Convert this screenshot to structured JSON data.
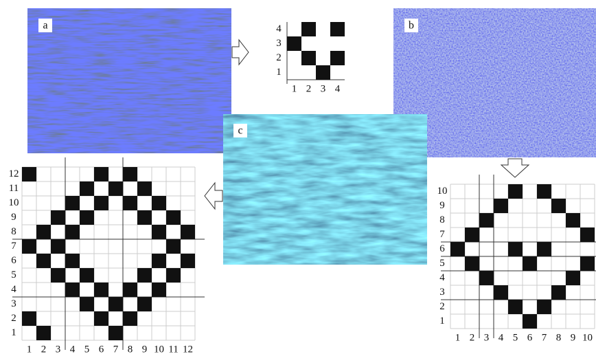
{
  "panels": {
    "a": "a",
    "b": "b",
    "c": "c"
  },
  "grids": {
    "small": {
      "rows": 4,
      "row_labels": [
        "1",
        "2",
        "3",
        "4"
      ],
      "col_labels": [
        "1",
        "2",
        "3",
        "4"
      ],
      "filled": [
        [
          2,
          4
        ],
        [
          4,
          4
        ],
        [
          1,
          3
        ],
        [
          2,
          2
        ],
        [
          4,
          2
        ],
        [
          3,
          1
        ]
      ]
    },
    "left": {
      "rows": 12,
      "row_labels": [
        "1",
        "2",
        "3",
        "4",
        "5",
        "6",
        "7",
        "8",
        "9",
        "10",
        "11",
        "12"
      ],
      "col_labels": [
        "1",
        "2",
        "3",
        "4",
        "5",
        "6",
        "7",
        "8",
        "9",
        "10",
        "11",
        "12"
      ],
      "filled": [
        [
          1,
          12
        ],
        [
          6,
          12
        ],
        [
          8,
          12
        ],
        [
          5,
          11
        ],
        [
          7,
          11
        ],
        [
          9,
          11
        ],
        [
          4,
          10
        ],
        [
          6,
          10
        ],
        [
          8,
          10
        ],
        [
          10,
          10
        ],
        [
          3,
          9
        ],
        [
          5,
          9
        ],
        [
          9,
          9
        ],
        [
          11,
          9
        ],
        [
          2,
          8
        ],
        [
          4,
          8
        ],
        [
          10,
          8
        ],
        [
          12,
          8
        ],
        [
          1,
          7
        ],
        [
          3,
          7
        ],
        [
          11,
          7
        ],
        [
          2,
          6
        ],
        [
          4,
          6
        ],
        [
          10,
          6
        ],
        [
          12,
          6
        ],
        [
          3,
          5
        ],
        [
          5,
          5
        ],
        [
          9,
          5
        ],
        [
          11,
          5
        ],
        [
          4,
          4
        ],
        [
          6,
          4
        ],
        [
          8,
          4
        ],
        [
          10,
          4
        ],
        [
          5,
          3
        ],
        [
          7,
          3
        ],
        [
          9,
          3
        ],
        [
          1,
          2
        ],
        [
          6,
          2
        ],
        [
          8,
          2
        ],
        [
          2,
          1
        ],
        [
          7,
          1
        ]
      ]
    },
    "right": {
      "rows": 10,
      "row_labels": [
        "1",
        "2",
        "3",
        "4",
        "5",
        "6",
        "7",
        "8",
        "9",
        "10"
      ],
      "col_labels": [
        "1",
        "2",
        "3",
        "4",
        "5",
        "6",
        "7",
        "8",
        "9",
        "10"
      ],
      "filled": [
        [
          5,
          10
        ],
        [
          7,
          10
        ],
        [
          4,
          9
        ],
        [
          8,
          9
        ],
        [
          3,
          8
        ],
        [
          9,
          8
        ],
        [
          2,
          7
        ],
        [
          10,
          7
        ],
        [
          1,
          6
        ],
        [
          5,
          6
        ],
        [
          7,
          6
        ],
        [
          2,
          5
        ],
        [
          6,
          5
        ],
        [
          10,
          5
        ],
        [
          3,
          4
        ],
        [
          9,
          4
        ],
        [
          4,
          3
        ],
        [
          8,
          3
        ],
        [
          5,
          2
        ],
        [
          7,
          2
        ],
        [
          6,
          1
        ]
      ]
    }
  }
}
